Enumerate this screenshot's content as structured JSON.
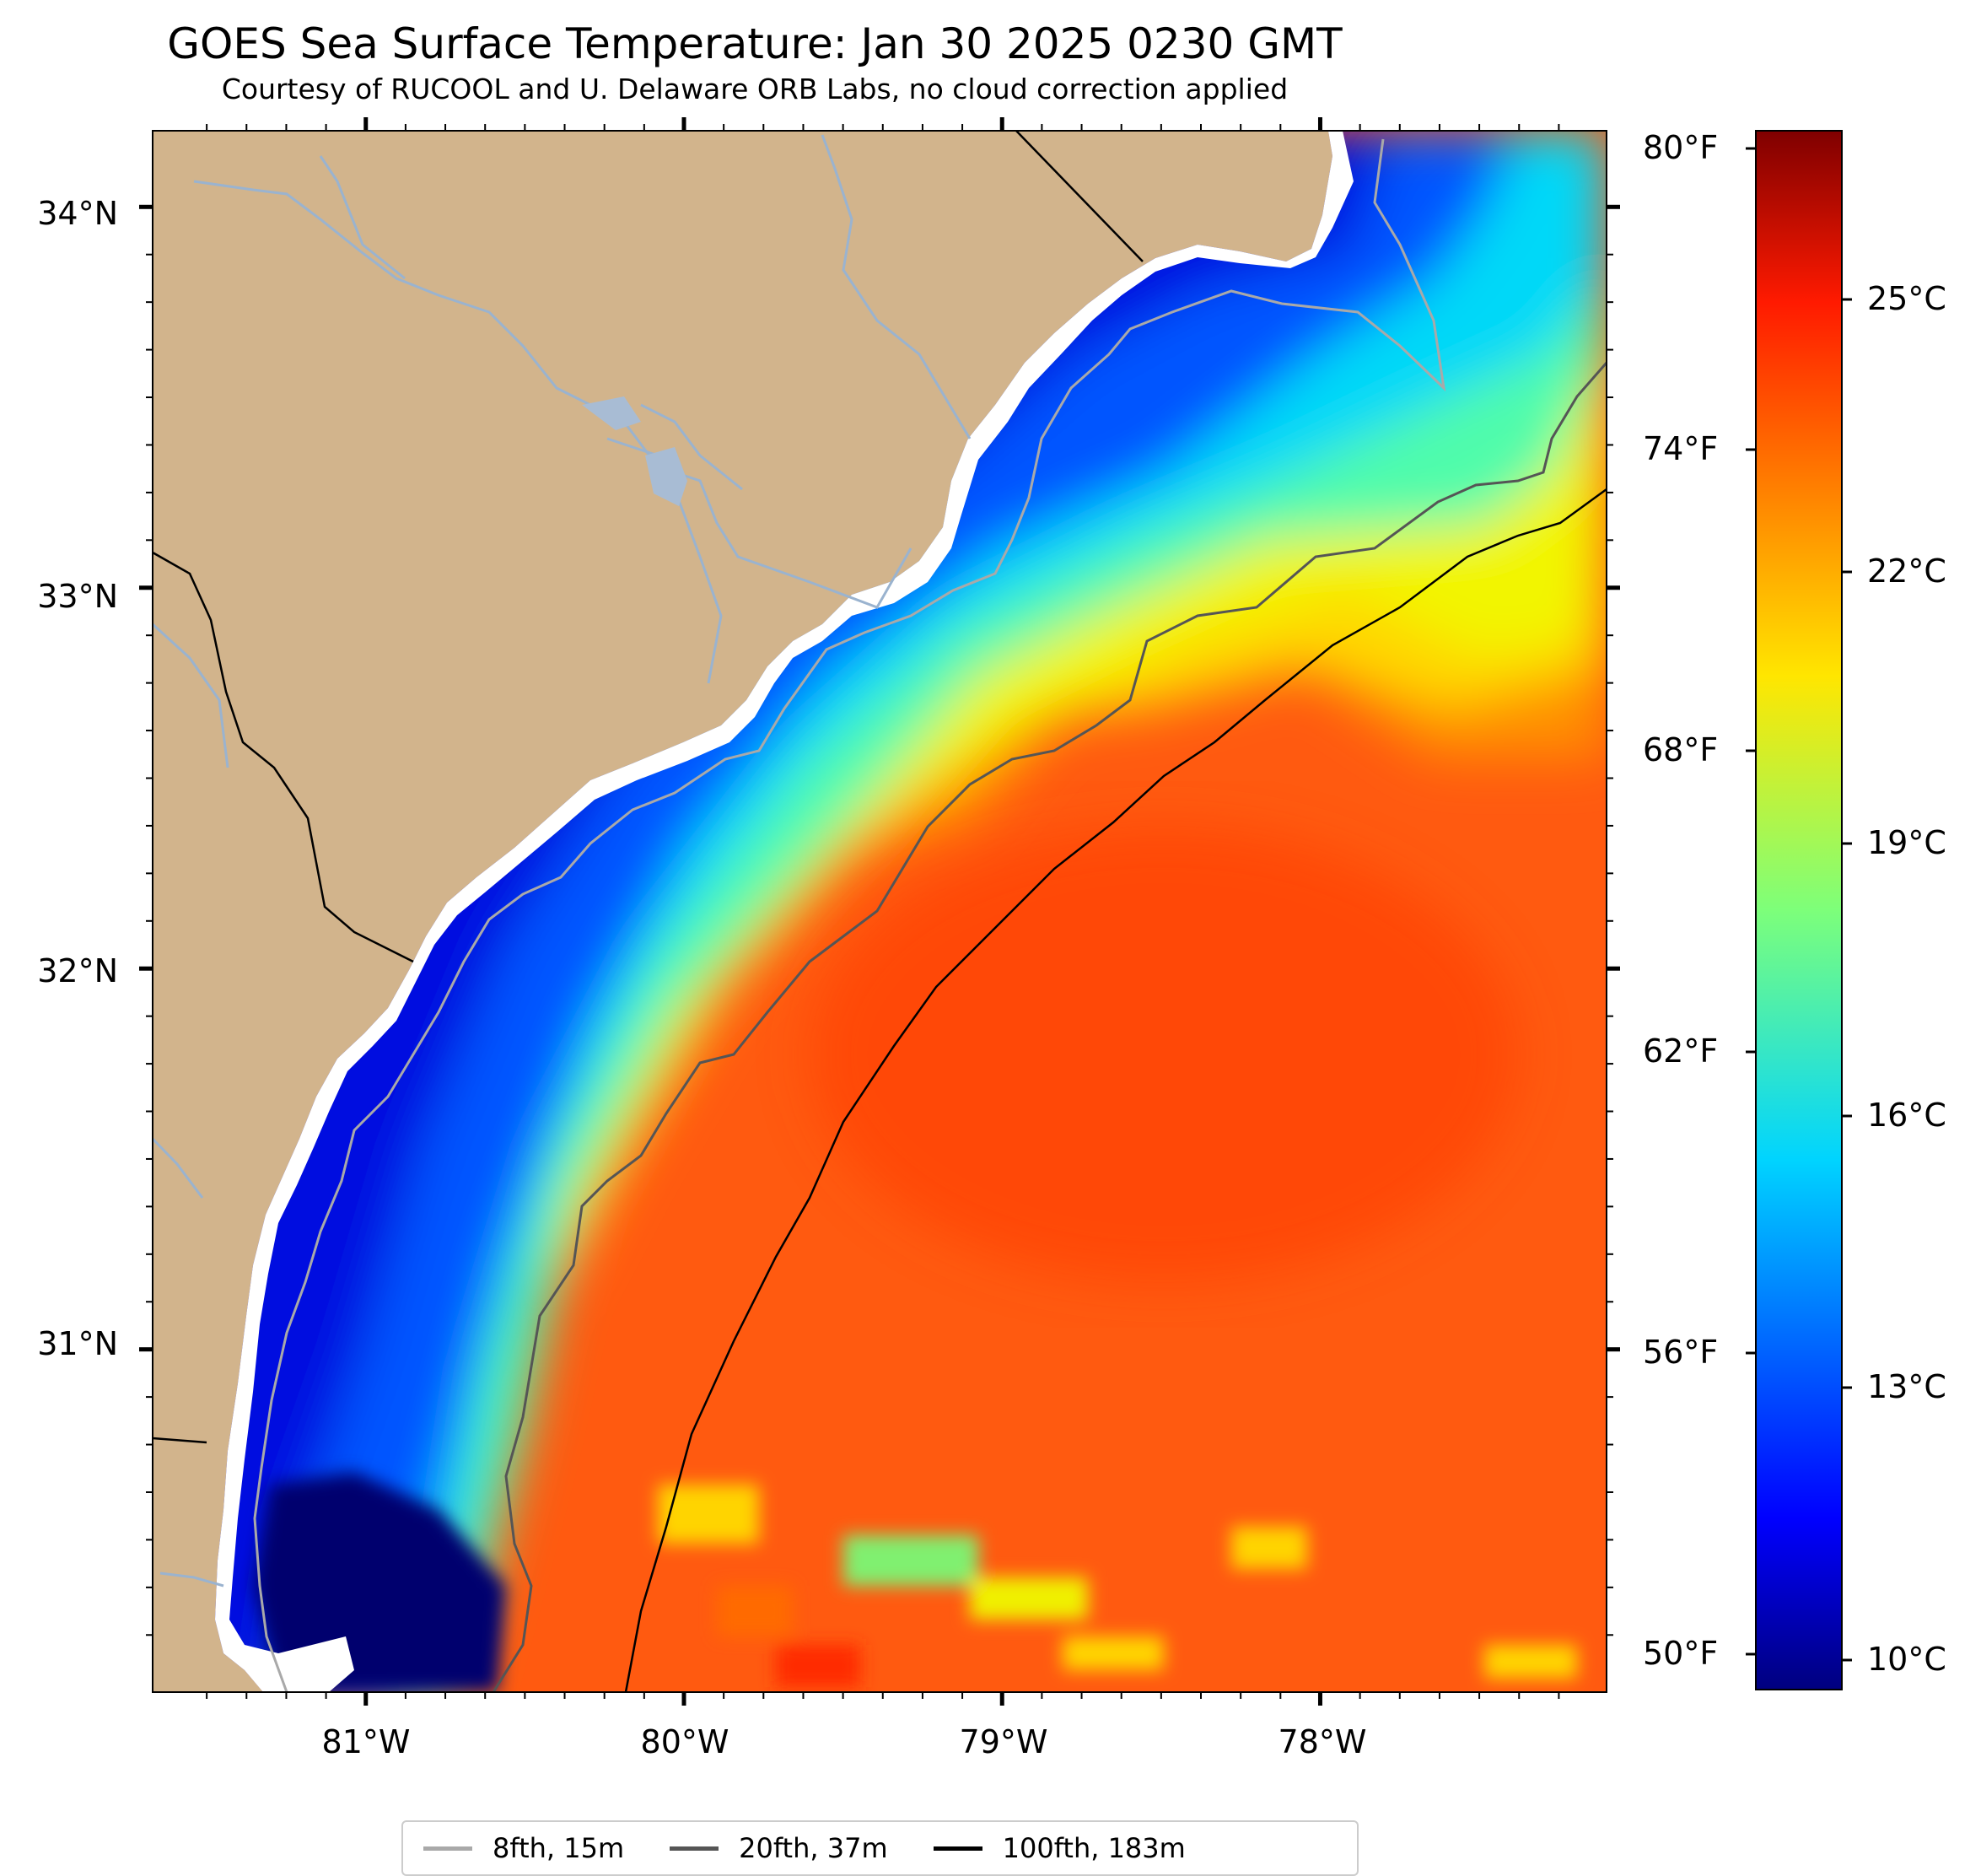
{
  "header": {
    "title": "GOES Sea Surface Temperature: Jan 30 2025 0230 GMT",
    "subtitle": "Courtesy of RUCOOL and U. Delaware ORB Labs, no cloud correction applied"
  },
  "map": {
    "lon_range": [
      -81.67,
      -77.1
    ],
    "lat_range": [
      30.1,
      34.2
    ],
    "lon_ticks": [
      "81°W",
      "80°W",
      "79°W",
      "78°W"
    ],
    "lat_ticks": [
      "34°N",
      "33°N",
      "32°N",
      "31°N"
    ],
    "land_color": "#d2b48c",
    "coast_color": "#000000",
    "river_color": "#9ab3cf"
  },
  "colorbar": {
    "colormap": "jet",
    "celsius_ticks": [
      "25°C",
      "22°C",
      "19°C",
      "16°C",
      "13°C",
      "10°C"
    ],
    "fahrenheit_ticks": [
      "80°F",
      "74°F",
      "68°F",
      "62°F",
      "56°F",
      "50°F"
    ]
  },
  "legend": {
    "items": [
      {
        "label": "8fth, 15m",
        "color": "#a9a9a9"
      },
      {
        "label": "20fth, 37m",
        "color": "#555555"
      },
      {
        "label": "100fth, 183m",
        "color": "#000000"
      }
    ]
  }
}
